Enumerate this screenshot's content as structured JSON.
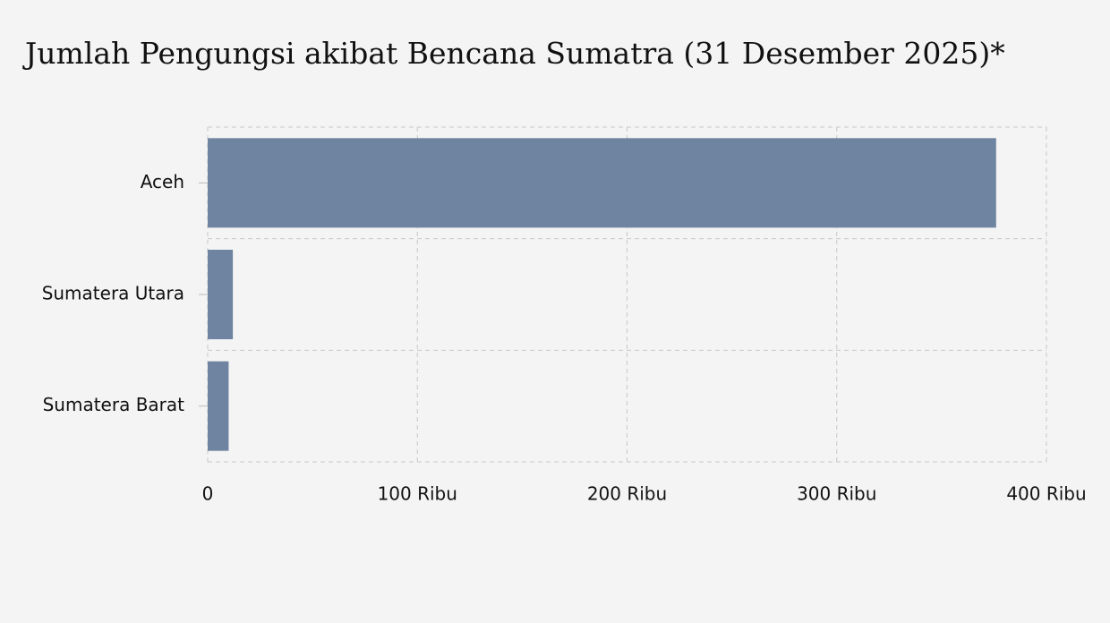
{
  "chart_data": {
    "type": "hbar",
    "title": "Jumlah Pengungsi akibat Bencana Sumatra (31 Desember 2025)*",
    "categories": [
      "Aceh",
      "Sumatera Utara",
      "Sumatera Barat"
    ],
    "values": [
      376000,
      12000,
      10000
    ],
    "color": "#6e84a0",
    "xlim": [
      0,
      400000
    ],
    "xticks": [
      0,
      {
        "value": 100000,
        "label": "100 Ribu"
      },
      {
        "value": 200000,
        "label": "200 Ribu"
      },
      {
        "value": 300000,
        "label": "300 Ribu"
      },
      {
        "value": 400000,
        "label": "400 Ribu"
      }
    ],
    "grid": true
  }
}
